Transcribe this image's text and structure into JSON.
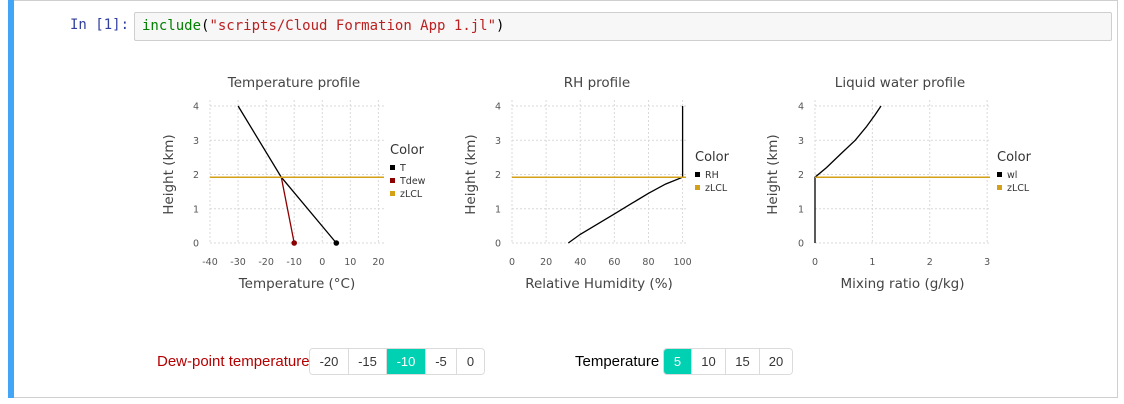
{
  "cell": {
    "prompt": "In [1]:",
    "code": {
      "fn": "include",
      "open": "(",
      "arg": "\"scripts/Cloud Formation App 1.jl\"",
      "close": ")"
    }
  },
  "charts": [
    {
      "title": "Temperature profile",
      "xlabel": "Temperature (°C)",
      "ylabel": "Height (km)",
      "xticks": [
        "-40",
        "-30",
        "-20",
        "-10",
        "0",
        "10",
        "20"
      ],
      "yticks": [
        "0",
        "1",
        "2",
        "3",
        "4"
      ],
      "legend_title": "Color",
      "legend": [
        {
          "label": "T",
          "color": "#000000"
        },
        {
          "label": "Tdew",
          "color": "#8b0000"
        },
        {
          "label": "zLCL",
          "color": "#d4a017"
        }
      ]
    },
    {
      "title": "RH profile",
      "xlabel": "Relative Humidity (%)",
      "ylabel": "Height (km)",
      "xticks": [
        "0",
        "20",
        "40",
        "60",
        "80",
        "100"
      ],
      "yticks": [
        "0",
        "1",
        "2",
        "3",
        "4"
      ],
      "legend_title": "Color",
      "legend": [
        {
          "label": "RH",
          "color": "#000000"
        },
        {
          "label": "zLCL",
          "color": "#d4a017"
        }
      ]
    },
    {
      "title": "Liquid water profile",
      "xlabel": "Mixing ratio (g/kg)",
      "ylabel": "Height (km)",
      "xticks": [
        "0",
        "1",
        "2",
        "3"
      ],
      "yticks": [
        "0",
        "1",
        "2",
        "3",
        "4"
      ],
      "legend_title": "Color",
      "legend": [
        {
          "label": "wl",
          "color": "#000000"
        },
        {
          "label": "zLCL",
          "color": "#d4a017"
        }
      ]
    }
  ],
  "chart_data": [
    {
      "type": "line",
      "title": "Temperature profile",
      "xlabel": "Temperature (°C)",
      "ylabel": "Height (km)",
      "xlim": [
        -40,
        22
      ],
      "ylim": [
        0,
        4
      ],
      "grid": true,
      "legend_position": "right",
      "series": [
        {
          "name": "T",
          "color": "#000000",
          "x": [
            5,
            -14.6,
            -30
          ],
          "y": [
            0,
            1.92,
            4
          ],
          "marker_at_start": true
        },
        {
          "name": "Tdew",
          "color": "#8b0000",
          "x": [
            -10,
            -14.6
          ],
          "y": [
            0,
            1.92
          ],
          "marker_at_start": true
        },
        {
          "name": "zLCL",
          "color": "#d4a017",
          "x": [
            -40,
            22
          ],
          "y": [
            1.92,
            1.92
          ],
          "horizontal": true
        }
      ]
    },
    {
      "type": "line",
      "title": "RH profile",
      "xlabel": "Relative Humidity (%)",
      "ylabel": "Height (km)",
      "xlim": [
        0,
        102
      ],
      "ylim": [
        0,
        4
      ],
      "grid": true,
      "legend_position": "right",
      "series": [
        {
          "name": "RH",
          "color": "#000000",
          "x": [
            33,
            40,
            50,
            60,
            70,
            80,
            90,
            100,
            100
          ],
          "y": [
            0,
            0.25,
            0.55,
            0.85,
            1.15,
            1.45,
            1.72,
            1.92,
            4
          ]
        },
        {
          "name": "zLCL",
          "color": "#d4a017",
          "x": [
            0,
            102
          ],
          "y": [
            1.92,
            1.92
          ],
          "horizontal": true
        }
      ]
    },
    {
      "type": "line",
      "title": "Liquid water profile",
      "xlabel": "Mixing ratio (g/kg)",
      "ylabel": "Height (km)",
      "xlim": [
        0,
        3.05
      ],
      "ylim": [
        0,
        4
      ],
      "grid": true,
      "legend_position": "right",
      "series": [
        {
          "name": "wl",
          "color": "#000000",
          "x": [
            0,
            0,
            0.2,
            0.45,
            0.7,
            0.9,
            1.05,
            1.15
          ],
          "y": [
            0,
            1.92,
            2.2,
            2.6,
            3.0,
            3.4,
            3.75,
            4
          ]
        },
        {
          "name": "zLCL",
          "color": "#d4a017",
          "x": [
            0,
            3.05
          ],
          "y": [
            1.92,
            1.92
          ],
          "horizontal": true
        }
      ]
    }
  ],
  "widgets": {
    "dewpoint": {
      "label": "Dew-point temperature",
      "label_color": "#b50000",
      "options": [
        "-20",
        "-15",
        "-10",
        "-5",
        "0"
      ],
      "selected": "-10"
    },
    "temperature": {
      "label": "Temperature",
      "options": [
        "5",
        "10",
        "15",
        "20"
      ],
      "selected": "5"
    }
  },
  "colors": {
    "accent": "#00d1b2",
    "cell_bar": "#42a5f5"
  }
}
